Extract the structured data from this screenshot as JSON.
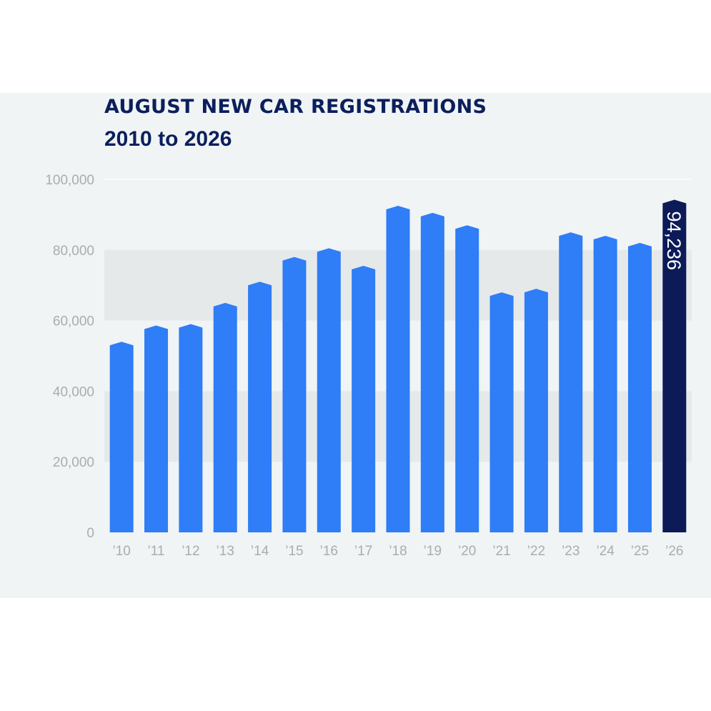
{
  "chart_data": {
    "type": "bar",
    "title": "AUGUST NEW CAR REGISTRATIONS",
    "subtitle": "2010 to 2026",
    "categories": [
      "’10",
      "’11",
      "’12",
      "’13",
      "’14",
      "’15",
      "’16",
      "’17",
      "’18",
      "’19",
      "’20",
      "’21",
      "’22",
      "’23",
      "’24",
      "’25",
      "’26"
    ],
    "values": [
      54000,
      58600,
      59000,
      65000,
      71000,
      78000,
      80500,
      75500,
      92500,
      90500,
      87000,
      68000,
      69000,
      85000,
      84000,
      82000,
      94236
    ],
    "ylim": [
      0,
      100000
    ],
    "yticks": [
      0,
      20000,
      40000,
      60000,
      80000,
      100000
    ],
    "ytick_labels": [
      "0",
      "20,000",
      "40,000",
      "60,000",
      "80,000",
      "100,000"
    ],
    "highlight_label": "94,236",
    "grid": "horizontal bands",
    "colors": {
      "bar": "#2f7df7",
      "highlight": "#0c1a57",
      "band": "#e6e9ea",
      "title": "#0c1f5c",
      "tick": "#a8adb1"
    }
  }
}
